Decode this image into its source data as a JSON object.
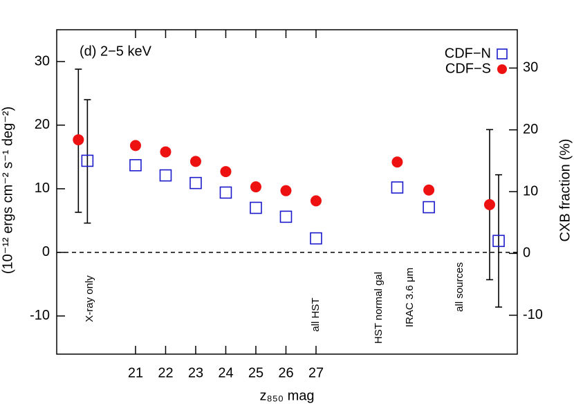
{
  "chart_data": {
    "type": "scatter",
    "panel_label": "(d)  2−5 keV",
    "xlabel": "z₈₅₀ mag",
    "ylabel": "(10⁻¹² ergs cm⁻² s⁻¹ deg⁻²)",
    "y2label": "CXB fraction (%)",
    "xlim": [
      18.38,
      33.69
    ],
    "xticks": [
      21,
      22,
      23,
      24,
      25,
      26,
      27
    ],
    "ylim": [
      -16,
      35
    ],
    "yticks": [
      -10,
      0,
      10,
      20,
      30
    ],
    "y2lim": [
      -16.3,
      36.2
    ],
    "y2ticks": [
      -10,
      0,
      10,
      20,
      30
    ],
    "reference_line": 0,
    "legend": "upper right",
    "annotations": [
      "X-ray only",
      "all HST",
      "HST normal gal",
      "IRAC 3.6 μm",
      "all sources"
    ],
    "series": [
      {
        "name": "CDF−N",
        "color": "#1a1acc",
        "marker": "square",
        "x": [
          19.4,
          21,
          22,
          23,
          24,
          25,
          26,
          27,
          29.7,
          30.75,
          33.07
        ],
        "values": [
          14.4,
          13.7,
          12.1,
          10.9,
          9.4,
          7.0,
          5.6,
          2.2,
          10.2,
          7.1,
          1.8
        ],
        "error_low": [
          4.6,
          null,
          null,
          null,
          null,
          null,
          null,
          null,
          null,
          null,
          -8.6
        ],
        "error_high": [
          24.0,
          null,
          null,
          null,
          null,
          null,
          null,
          null,
          null,
          null,
          12.2
        ]
      },
      {
        "name": "CDF−S",
        "color": "#ee1111",
        "marker": "circle",
        "x": [
          19.1,
          21,
          22,
          23,
          24,
          25,
          26,
          27,
          29.7,
          30.75,
          32.77
        ],
        "values": [
          17.7,
          16.8,
          15.8,
          14.3,
          12.7,
          10.3,
          9.7,
          8.1,
          14.2,
          9.8,
          7.5
        ],
        "error_low": [
          6.3,
          null,
          null,
          null,
          null,
          null,
          null,
          null,
          null,
          null,
          -4.3
        ],
        "error_high": [
          28.8,
          null,
          null,
          null,
          null,
          null,
          null,
          null,
          null,
          null,
          19.3
        ]
      }
    ]
  }
}
